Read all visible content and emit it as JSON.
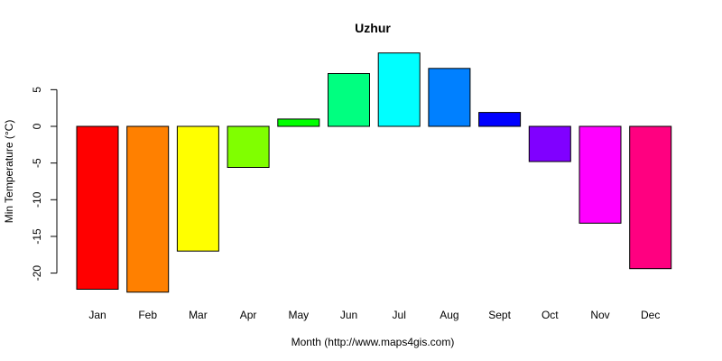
{
  "chart_data": {
    "type": "bar",
    "title": "Uzhur",
    "xlabel": "Month (http://www.maps4gis.com)",
    "ylabel": "Min Temperature (°C)",
    "categories": [
      "Jan",
      "Feb",
      "Mar",
      "Apr",
      "May",
      "Jun",
      "Jul",
      "Aug",
      "Sept",
      "Oct",
      "Nov",
      "Dec"
    ],
    "values": [
      -22.2,
      -22.6,
      -17.0,
      -5.6,
      1.0,
      7.2,
      10.0,
      7.9,
      1.9,
      -4.8,
      -13.2,
      -19.4
    ],
    "colors": [
      "#ff0000",
      "#ff8000",
      "#ffff00",
      "#80ff00",
      "#00ff00",
      "#00ff80",
      "#00ffff",
      "#0080ff",
      "#0000ff",
      "#8000ff",
      "#ff00ff",
      "#ff0080"
    ],
    "yticks": [
      -20,
      -15,
      -10,
      -5,
      0,
      5
    ],
    "ylim": [
      -23,
      10
    ],
    "grid": false,
    "legend": "none"
  }
}
